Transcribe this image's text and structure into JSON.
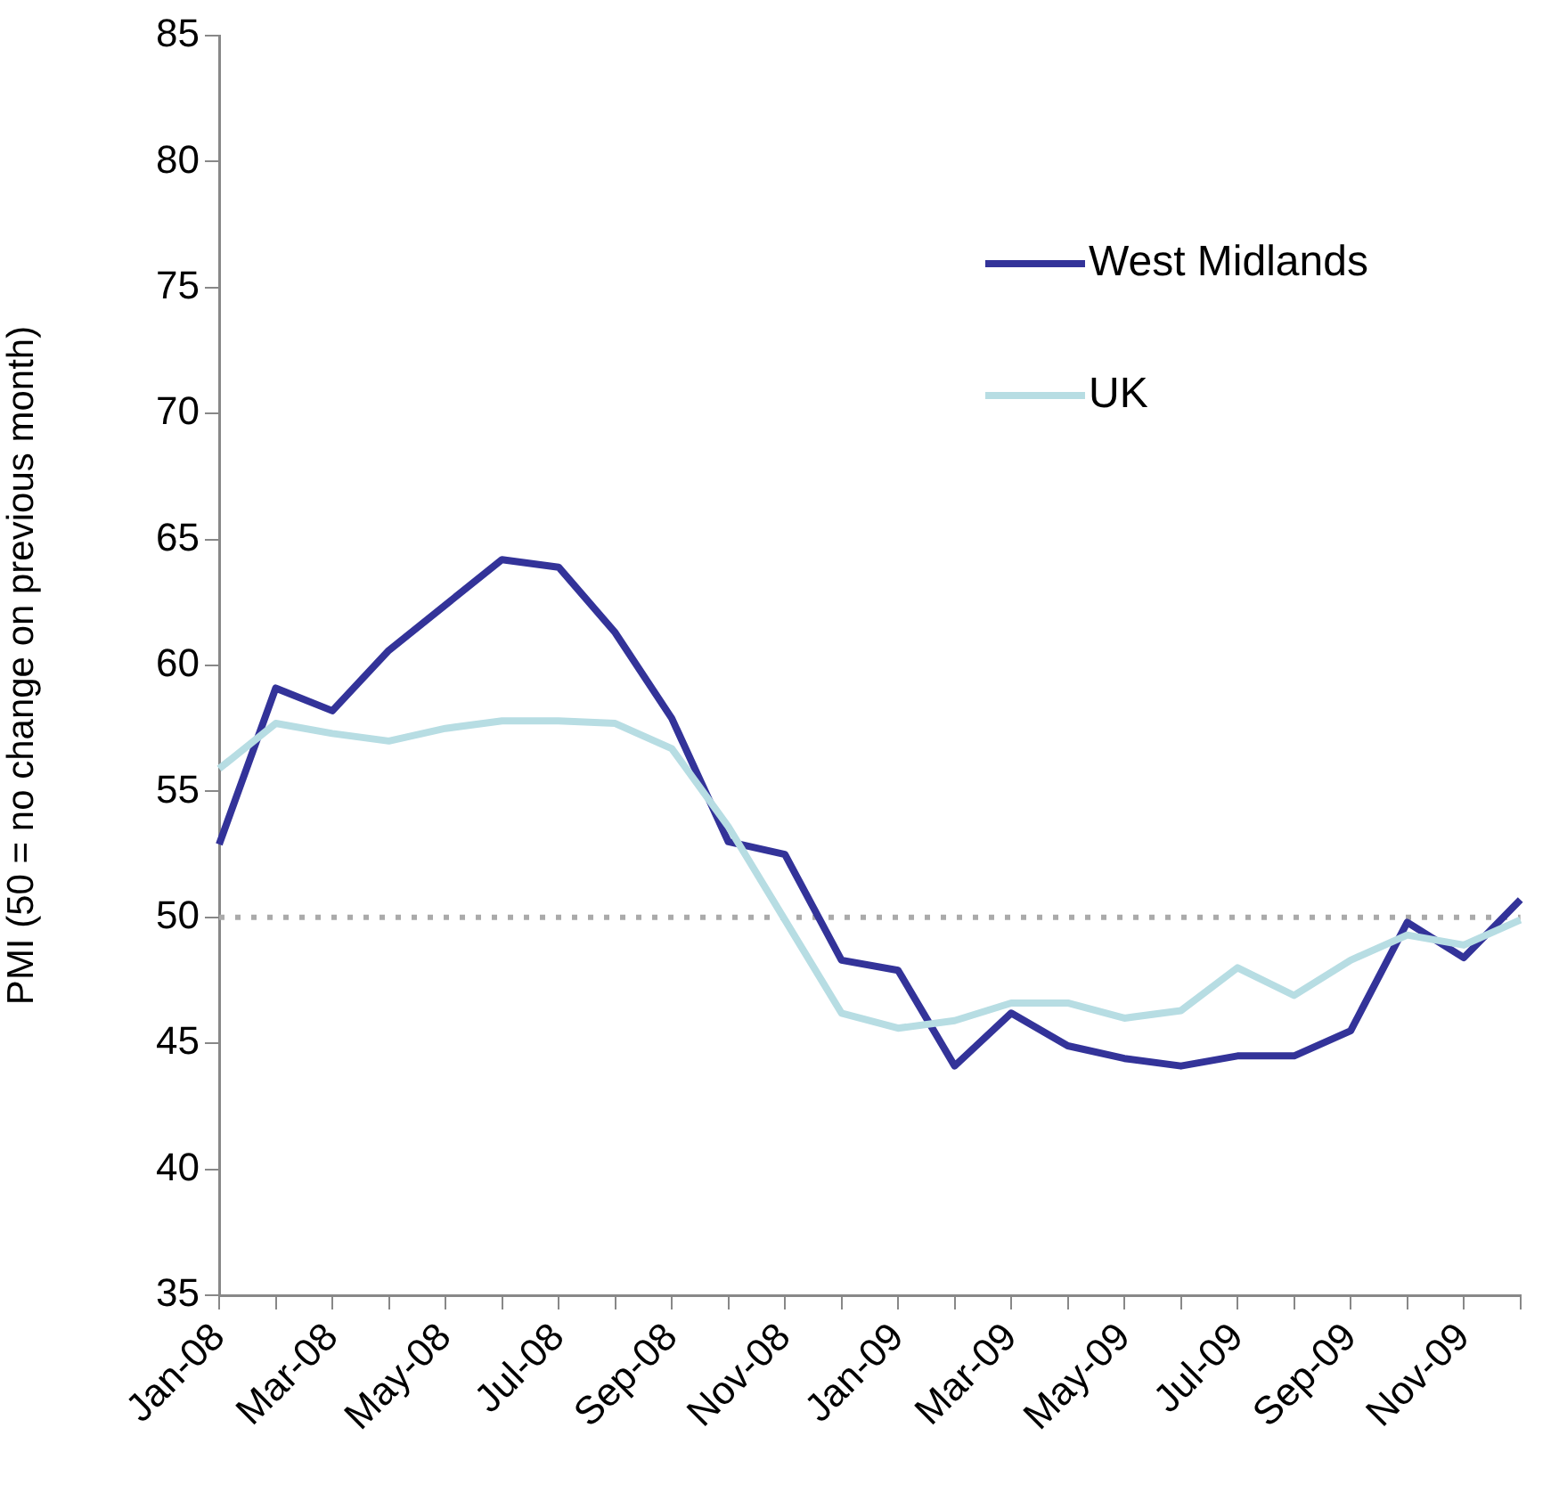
{
  "chart_data": {
    "type": "line",
    "ylabel": "PMI (50 = no change on previous month)",
    "categories": [
      "Jan-08",
      null,
      "Mar-08",
      null,
      "May-08",
      null,
      "Jul-08",
      null,
      "Sep-08",
      null,
      "Nov-08",
      null,
      "Jan-09",
      null,
      "Mar-09",
      null,
      "May-09",
      null,
      "Jul-09",
      null,
      "Sep-09",
      null,
      "Nov-09",
      null
    ],
    "series": [
      {
        "name": "West Midlands",
        "color": "#333399",
        "values": [
          52.9,
          59.1,
          58.2,
          60.6,
          62.4,
          64.2,
          63.9,
          61.3,
          57.9,
          53.0,
          52.5,
          48.3,
          47.9,
          44.1,
          46.2,
          44.9,
          44.4,
          44.1,
          44.5,
          44.5,
          45.5,
          49.8,
          48.4,
          50.7
        ]
      },
      {
        "name": "UK",
        "color": "#b7dde3",
        "values": [
          55.9,
          57.7,
          57.3,
          57.0,
          57.5,
          57.8,
          57.8,
          57.7,
          56.7,
          53.6,
          49.9,
          46.2,
          45.6,
          45.9,
          46.6,
          46.6,
          46.0,
          46.3,
          48.0,
          46.9,
          48.3,
          49.3,
          48.9,
          49.9
        ]
      }
    ],
    "ylim": [
      35,
      85
    ],
    "yticks": [
      35,
      40,
      45,
      50,
      55,
      60,
      65,
      70,
      75,
      80,
      85
    ],
    "ref_lines": [
      {
        "axis": "y",
        "value": 50,
        "color": "#aaaaaa",
        "line_style": "dotted"
      }
    ],
    "grid": false,
    "legend": "top right",
    "marker": "none",
    "line_style": "solid"
  }
}
